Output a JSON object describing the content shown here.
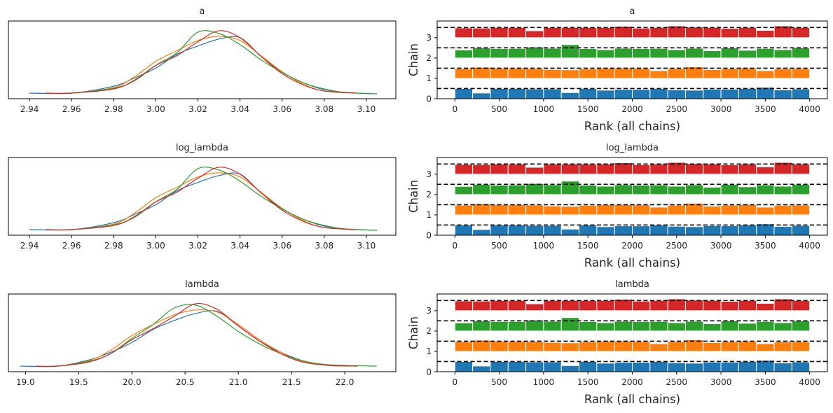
{
  "colors": {
    "chain_0": "#1f77b4",
    "chain_1": "#ff7f0e",
    "chain_2": "#2ca02c",
    "chain_3": "#d62728",
    "frame": "#000000",
    "text": "#262626"
  },
  "chart_data": [
    {
      "type": "line",
      "panel": "density",
      "title": "a",
      "xlim": [
        2.93,
        3.114
      ],
      "x_ticks": [
        "2.94",
        "2.96",
        "2.98",
        "3.00",
        "3.02",
        "3.04",
        "3.06",
        "3.08",
        "3.10"
      ],
      "x_tick_values": [
        2.94,
        2.96,
        2.98,
        3.0,
        3.02,
        3.04,
        3.06,
        3.08,
        3.1
      ],
      "y_ticks": [],
      "series": [
        {
          "chain": 0,
          "x": [
            2.94,
            2.96,
            2.98,
            2.99,
            3.0,
            3.01,
            3.02,
            3.03,
            3.04,
            3.05,
            3.06,
            3.07,
            3.08,
            3.09,
            3.105
          ],
          "y": [
            0.02,
            0.02,
            0.12,
            0.24,
            0.38,
            0.58,
            0.7,
            0.8,
            0.82,
            0.55,
            0.32,
            0.17,
            0.07,
            0.03,
            0.01
          ]
        },
        {
          "chain": 1,
          "x": [
            2.948,
            2.96,
            2.98,
            2.99,
            3.0,
            3.01,
            3.02,
            3.03,
            3.04,
            3.05,
            3.06,
            3.07,
            3.08,
            3.095
          ],
          "y": [
            0.02,
            0.02,
            0.1,
            0.26,
            0.48,
            0.63,
            0.78,
            0.84,
            0.78,
            0.56,
            0.33,
            0.15,
            0.05,
            0.02
          ]
        },
        {
          "chain": 2,
          "x": [
            2.948,
            2.96,
            2.98,
            2.99,
            3.0,
            3.01,
            3.02,
            3.03,
            3.04,
            3.05,
            3.06,
            3.07,
            3.08,
            3.09,
            3.105
          ],
          "y": [
            0.02,
            0.02,
            0.09,
            0.2,
            0.42,
            0.6,
            0.9,
            0.88,
            0.72,
            0.5,
            0.32,
            0.17,
            0.08,
            0.03,
            0.01
          ]
        },
        {
          "chain": 3,
          "x": [
            2.948,
            2.96,
            2.98,
            2.99,
            3.0,
            3.01,
            3.02,
            3.03,
            3.04,
            3.05,
            3.06,
            3.07,
            3.08,
            3.095
          ],
          "y": [
            0.02,
            0.02,
            0.08,
            0.21,
            0.42,
            0.56,
            0.76,
            0.92,
            0.82,
            0.55,
            0.3,
            0.14,
            0.05,
            0.02
          ]
        }
      ]
    },
    {
      "type": "bar",
      "panel": "rank",
      "title": "a",
      "xlabel": "Rank (all chains)",
      "ylabel": "Chain",
      "xlim": [
        -200,
        4200
      ],
      "ylim": [
        0,
        3.82
      ],
      "x_ticks": [
        "0",
        "500",
        "1000",
        "1500",
        "2000",
        "2500",
        "3000",
        "3500",
        "4000"
      ],
      "x_tick_values": [
        0,
        500,
        1000,
        1500,
        2000,
        2500,
        3000,
        3500,
        4000
      ],
      "y_ticks": [
        "0",
        "1",
        "2",
        "3"
      ],
      "y_tick_values": [
        0,
        1,
        2,
        3
      ],
      "reference_lines": [
        0.5,
        1.5,
        2.5,
        3.5
      ],
      "bin_edges": [
        0,
        200,
        400,
        600,
        800,
        1000,
        1200,
        1400,
        1600,
        1800,
        2000,
        2200,
        2400,
        2600,
        2800,
        3000,
        3200,
        3400,
        3600,
        3800,
        4000
      ],
      "series": [
        {
          "chain": 0,
          "baseline": 0,
          "heights": [
            0.5,
            0.28,
            0.5,
            0.5,
            0.48,
            0.48,
            0.3,
            0.5,
            0.42,
            0.46,
            0.46,
            0.5,
            0.44,
            0.42,
            0.47,
            0.47,
            0.5,
            0.56,
            0.43,
            0.48
          ]
        },
        {
          "chain": 1,
          "baseline": 1,
          "heights": [
            0.48,
            0.55,
            0.5,
            0.5,
            0.48,
            0.44,
            0.42,
            0.47,
            0.5,
            0.5,
            0.49,
            0.38,
            0.48,
            0.57,
            0.43,
            0.48,
            0.5,
            0.38,
            0.47,
            0.48
          ]
        },
        {
          "chain": 2,
          "baseline": 2,
          "heights": [
            0.4,
            0.5,
            0.46,
            0.47,
            0.54,
            0.48,
            0.66,
            0.46,
            0.41,
            0.48,
            0.46,
            0.47,
            0.41,
            0.48,
            0.36,
            0.5,
            0.38,
            0.47,
            0.41,
            0.5
          ]
        },
        {
          "chain": 3,
          "baseline": 3,
          "heights": [
            0.48,
            0.47,
            0.5,
            0.5,
            0.34,
            0.5,
            0.5,
            0.5,
            0.5,
            0.56,
            0.47,
            0.5,
            0.58,
            0.52,
            0.5,
            0.46,
            0.5,
            0.36,
            0.58,
            0.5
          ]
        }
      ]
    },
    {
      "type": "line",
      "panel": "density",
      "title": "log_lambda",
      "xlim": [
        2.93,
        3.114
      ],
      "x_ticks": [
        "2.94",
        "2.96",
        "2.98",
        "3.00",
        "3.02",
        "3.04",
        "3.06",
        "3.08",
        "3.10"
      ],
      "x_tick_values": [
        2.94,
        2.96,
        2.98,
        3.0,
        3.02,
        3.04,
        3.06,
        3.08,
        3.1
      ],
      "y_ticks": [],
      "series": [
        {
          "chain": 0,
          "x": [
            2.94,
            2.96,
            2.98,
            2.99,
            3.0,
            3.01,
            3.02,
            3.03,
            3.04,
            3.05,
            3.06,
            3.07,
            3.08,
            3.09,
            3.105
          ],
          "y": [
            0.02,
            0.02,
            0.12,
            0.24,
            0.38,
            0.58,
            0.7,
            0.8,
            0.82,
            0.55,
            0.32,
            0.17,
            0.07,
            0.03,
            0.01
          ]
        },
        {
          "chain": 1,
          "x": [
            2.948,
            2.96,
            2.98,
            2.99,
            3.0,
            3.01,
            3.02,
            3.03,
            3.04,
            3.05,
            3.06,
            3.07,
            3.08,
            3.095
          ],
          "y": [
            0.02,
            0.02,
            0.1,
            0.26,
            0.48,
            0.63,
            0.78,
            0.84,
            0.78,
            0.56,
            0.33,
            0.15,
            0.05,
            0.02
          ]
        },
        {
          "chain": 2,
          "x": [
            2.948,
            2.96,
            2.98,
            2.99,
            3.0,
            3.01,
            3.02,
            3.03,
            3.04,
            3.05,
            3.06,
            3.07,
            3.08,
            3.09,
            3.105
          ],
          "y": [
            0.02,
            0.02,
            0.09,
            0.2,
            0.42,
            0.6,
            0.9,
            0.88,
            0.72,
            0.5,
            0.32,
            0.17,
            0.08,
            0.03,
            0.01
          ]
        },
        {
          "chain": 3,
          "x": [
            2.948,
            2.96,
            2.98,
            2.99,
            3.0,
            3.01,
            3.02,
            3.03,
            3.04,
            3.05,
            3.06,
            3.07,
            3.08,
            3.095
          ],
          "y": [
            0.02,
            0.02,
            0.08,
            0.21,
            0.42,
            0.56,
            0.76,
            0.92,
            0.82,
            0.55,
            0.3,
            0.14,
            0.05,
            0.02
          ]
        }
      ]
    },
    {
      "type": "bar",
      "panel": "rank",
      "title": "log_lambda",
      "xlabel": "Rank (all chains)",
      "ylabel": "Chain",
      "xlim": [
        -200,
        4200
      ],
      "ylim": [
        0,
        3.82
      ],
      "x_ticks": [
        "0",
        "500",
        "1000",
        "1500",
        "2000",
        "2500",
        "3000",
        "3500",
        "4000"
      ],
      "x_tick_values": [
        0,
        500,
        1000,
        1500,
        2000,
        2500,
        3000,
        3500,
        4000
      ],
      "y_ticks": [
        "0",
        "1",
        "2",
        "3"
      ],
      "y_tick_values": [
        0,
        1,
        2,
        3
      ],
      "reference_lines": [
        0.5,
        1.5,
        2.5,
        3.5
      ],
      "bin_edges": [
        0,
        200,
        400,
        600,
        800,
        1000,
        1200,
        1400,
        1600,
        1800,
        2000,
        2200,
        2400,
        2600,
        2800,
        3000,
        3200,
        3400,
        3600,
        3800,
        4000
      ],
      "series": [
        {
          "chain": 0,
          "baseline": 0,
          "heights": [
            0.5,
            0.28,
            0.5,
            0.5,
            0.48,
            0.48,
            0.3,
            0.5,
            0.42,
            0.46,
            0.46,
            0.5,
            0.44,
            0.42,
            0.47,
            0.47,
            0.5,
            0.56,
            0.43,
            0.48
          ]
        },
        {
          "chain": 1,
          "baseline": 1,
          "heights": [
            0.48,
            0.55,
            0.5,
            0.5,
            0.48,
            0.44,
            0.42,
            0.47,
            0.5,
            0.5,
            0.49,
            0.38,
            0.48,
            0.57,
            0.43,
            0.48,
            0.5,
            0.38,
            0.47,
            0.48
          ]
        },
        {
          "chain": 2,
          "baseline": 2,
          "heights": [
            0.4,
            0.5,
            0.46,
            0.47,
            0.54,
            0.48,
            0.66,
            0.46,
            0.41,
            0.48,
            0.46,
            0.47,
            0.41,
            0.48,
            0.36,
            0.5,
            0.38,
            0.47,
            0.41,
            0.5
          ]
        },
        {
          "chain": 3,
          "baseline": 3,
          "heights": [
            0.48,
            0.47,
            0.5,
            0.5,
            0.34,
            0.5,
            0.5,
            0.5,
            0.5,
            0.56,
            0.47,
            0.5,
            0.58,
            0.52,
            0.5,
            0.46,
            0.5,
            0.36,
            0.58,
            0.5
          ]
        }
      ]
    },
    {
      "type": "line",
      "panel": "density",
      "title": "lambda",
      "xlim": [
        18.84,
        22.48
      ],
      "x_ticks": [
        "19.0",
        "19.5",
        "20.0",
        "20.5",
        "21.0",
        "21.5",
        "22.0"
      ],
      "x_tick_values": [
        19.0,
        19.5,
        20.0,
        20.5,
        21.0,
        21.5,
        22.0
      ],
      "y_ticks": [],
      "series": [
        {
          "chain": 0,
          "x": [
            18.95,
            19.3,
            19.6,
            19.8,
            20.0,
            20.2,
            20.4,
            20.6,
            20.8,
            21.0,
            21.2,
            21.4,
            21.6,
            21.8,
            22.05
          ],
          "y": [
            0.02,
            0.02,
            0.11,
            0.22,
            0.36,
            0.55,
            0.68,
            0.78,
            0.81,
            0.6,
            0.38,
            0.22,
            0.1,
            0.04,
            0.02
          ]
        },
        {
          "chain": 1,
          "x": [
            19.1,
            19.3,
            19.6,
            19.8,
            20.0,
            20.2,
            20.4,
            20.6,
            20.8,
            21.0,
            21.2,
            21.4,
            21.6,
            21.85,
            22.12
          ],
          "y": [
            0.02,
            0.02,
            0.1,
            0.25,
            0.46,
            0.62,
            0.76,
            0.83,
            0.8,
            0.62,
            0.4,
            0.22,
            0.09,
            0.03,
            0.02
          ]
        },
        {
          "chain": 2,
          "x": [
            19.1,
            19.3,
            19.6,
            19.8,
            20.0,
            20.2,
            20.4,
            20.6,
            20.8,
            21.0,
            21.2,
            21.4,
            21.6,
            21.85,
            22.3
          ],
          "y": [
            0.02,
            0.02,
            0.09,
            0.2,
            0.42,
            0.62,
            0.86,
            0.9,
            0.74,
            0.52,
            0.34,
            0.2,
            0.1,
            0.04,
            0.02
          ]
        },
        {
          "chain": 3,
          "x": [
            19.1,
            19.3,
            19.6,
            19.8,
            20.0,
            20.2,
            20.4,
            20.6,
            20.8,
            21.0,
            21.2,
            21.4,
            21.6,
            21.85,
            22.12
          ],
          "y": [
            0.02,
            0.02,
            0.08,
            0.2,
            0.4,
            0.56,
            0.74,
            0.92,
            0.84,
            0.6,
            0.38,
            0.2,
            0.08,
            0.03,
            0.02
          ]
        }
      ]
    },
    {
      "type": "bar",
      "panel": "rank",
      "title": "lambda",
      "xlabel": "Rank (all chains)",
      "ylabel": "Chain",
      "xlim": [
        -200,
        4200
      ],
      "ylim": [
        0,
        3.82
      ],
      "x_ticks": [
        "0",
        "500",
        "1000",
        "1500",
        "2000",
        "2500",
        "3000",
        "3500",
        "4000"
      ],
      "x_tick_values": [
        0,
        500,
        1000,
        1500,
        2000,
        2500,
        3000,
        3500,
        4000
      ],
      "y_ticks": [
        "0",
        "1",
        "2",
        "3"
      ],
      "y_tick_values": [
        0,
        1,
        2,
        3
      ],
      "reference_lines": [
        0.5,
        1.5,
        2.5,
        3.5
      ],
      "bin_edges": [
        0,
        200,
        400,
        600,
        800,
        1000,
        1200,
        1400,
        1600,
        1800,
        2000,
        2200,
        2400,
        2600,
        2800,
        3000,
        3200,
        3400,
        3600,
        3800,
        4000
      ],
      "series": [
        {
          "chain": 0,
          "baseline": 0,
          "heights": [
            0.5,
            0.28,
            0.5,
            0.5,
            0.48,
            0.48,
            0.3,
            0.5,
            0.42,
            0.46,
            0.46,
            0.5,
            0.44,
            0.42,
            0.47,
            0.47,
            0.5,
            0.56,
            0.43,
            0.48
          ]
        },
        {
          "chain": 1,
          "baseline": 1,
          "heights": [
            0.48,
            0.55,
            0.5,
            0.5,
            0.48,
            0.44,
            0.42,
            0.47,
            0.5,
            0.5,
            0.49,
            0.38,
            0.48,
            0.57,
            0.43,
            0.48,
            0.5,
            0.38,
            0.47,
            0.48
          ]
        },
        {
          "chain": 2,
          "baseline": 2,
          "heights": [
            0.4,
            0.5,
            0.46,
            0.47,
            0.54,
            0.48,
            0.66,
            0.46,
            0.41,
            0.48,
            0.46,
            0.47,
            0.41,
            0.48,
            0.36,
            0.5,
            0.38,
            0.47,
            0.41,
            0.5
          ]
        },
        {
          "chain": 3,
          "baseline": 3,
          "heights": [
            0.48,
            0.47,
            0.5,
            0.5,
            0.34,
            0.5,
            0.5,
            0.5,
            0.5,
            0.56,
            0.47,
            0.5,
            0.58,
            0.52,
            0.5,
            0.46,
            0.5,
            0.36,
            0.58,
            0.5
          ]
        }
      ]
    }
  ]
}
